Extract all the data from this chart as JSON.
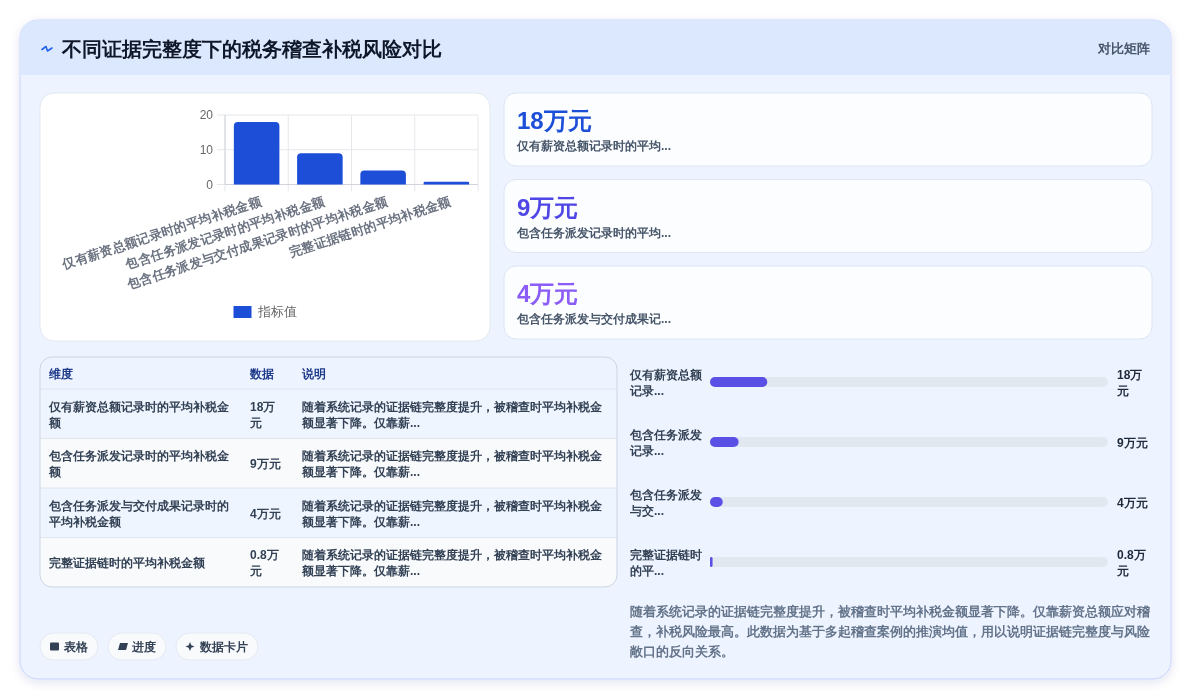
{
  "chart_data": [
    {
      "type": "other",
      "title": "不同证据完整度下的税务稽查补税风险对比",
      "subtitle": "对比矩阵"
    },
    {
      "type": "bar",
      "categories": [
        "仅有薪资总额记录时的平均补税金额",
        "包含任务派发记录时的平均补税金额",
        "包含任务派发与交付成果记录时的平均补税金额",
        "完整证据链时的平均补税金额"
      ],
      "series": [
        {
          "name": "指标值",
          "color": "#1d4ed8",
          "values": [
            18,
            9,
            4,
            0.8
          ]
        }
      ],
      "ylim": [
        0,
        20
      ],
      "yticks": [
        0,
        10,
        20
      ],
      "grid": true,
      "legend": "bottom"
    },
    {
      "type": "other",
      "categories": [
        "仅有薪资总额记录时的平均...",
        "包含任务派发记录时的平均...",
        "包含任务派发与交付成果记..."
      ],
      "value_labels": [
        "18万元",
        "9万元",
        "4万元"
      ]
    },
    {
      "type": "other",
      "categories": [
        "仅有薪资总额记录时的平均补税金额",
        "包含任务派发记录时的平均补税金额",
        "包含任务派发与交付成果记录时的平均补税金额",
        "完整证据链时的平均补税金额"
      ],
      "value_labels": [
        "18万元",
        "9万元",
        "4万元",
        "0.8万元"
      ],
      "annotations": [
        "维度",
        "数据",
        "说明",
        "随着系统记录的证据链完整度提升，被稽查时平均补税金额显著下降。仅靠薪...",
        "随着系统记录的证据链完整度提升，被稽查时平均补税金额显著下降。仅靠薪...",
        "随着系统记录的证据链完整度提升，被稽查时平均补税金额显著下降。仅靠薪...",
        "随着系统记录的证据链完整度提升，被稽查时平均补税金额显著下降。仅靠薪..."
      ]
    },
    {
      "type": "bar",
      "orientation": "horizontal",
      "categories": [
        "仅有薪资总额记录...",
        "包含任务派发记录...",
        "包含任务派发与交...",
        "完整证据链时的平..."
      ],
      "values": [
        18,
        9,
        4,
        0.8
      ],
      "value_labels": [
        "18万元",
        "9万元",
        "4万元",
        "0.8万元"
      ],
      "color": "#5b50e6",
      "xlim": [
        0,
        125
      ],
      "tick_labels": "y",
      "annotations": [
        "随着系统记录的证据链完整度提升，被稽查时平均补税金额显著下降。仅靠薪资总额应对稽查，补税风险最高。此数据为基于多起稽查案例的推演均值，用以说明证据链完整度与风险敞口的反向关系。"
      ]
    },
    {
      "type": "other",
      "annotations": [
        "表格",
        "进度",
        "数据卡片"
      ]
    }
  ]
}
